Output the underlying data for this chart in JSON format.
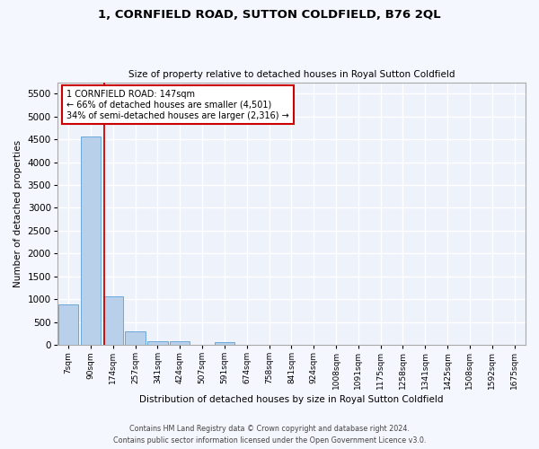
{
  "title": "1, CORNFIELD ROAD, SUTTON COLDFIELD, B76 2QL",
  "subtitle": "Size of property relative to detached houses in Royal Sutton Coldfield",
  "xlabel": "Distribution of detached houses by size in Royal Sutton Coldfield",
  "ylabel": "Number of detached properties",
  "bar_color": "#b8d0ea",
  "bar_edge_color": "#5a9fd4",
  "background_color": "#eef2fa",
  "grid_color": "#ffffff",
  "bin_labels": [
    "7sqm",
    "90sqm",
    "174sqm",
    "257sqm",
    "341sqm",
    "424sqm",
    "507sqm",
    "591sqm",
    "674sqm",
    "758sqm",
    "841sqm",
    "924sqm",
    "1008sqm",
    "1091sqm",
    "1175sqm",
    "1258sqm",
    "1341sqm",
    "1425sqm",
    "1508sqm",
    "1592sqm",
    "1675sqm"
  ],
  "bar_heights": [
    880,
    4560,
    1060,
    290,
    80,
    80,
    0,
    55,
    0,
    0,
    0,
    0,
    0,
    0,
    0,
    0,
    0,
    0,
    0,
    0,
    0
  ],
  "property_line_x": 1.62,
  "annotation_text": "1 CORNFIELD ROAD: 147sqm\n← 66% of detached houses are smaller (4,501)\n34% of semi-detached houses are larger (2,316) →",
  "annotation_box_color": "#ffffff",
  "annotation_box_edge_color": "#cc0000",
  "property_line_color": "#cc0000",
  "ylim": [
    0,
    5750
  ],
  "yticks": [
    0,
    500,
    1000,
    1500,
    2000,
    2500,
    3000,
    3500,
    4000,
    4500,
    5000,
    5500
  ],
  "footer_line1": "Contains HM Land Registry data © Crown copyright and database right 2024.",
  "footer_line2": "Contains public sector information licensed under the Open Government Licence v3.0."
}
